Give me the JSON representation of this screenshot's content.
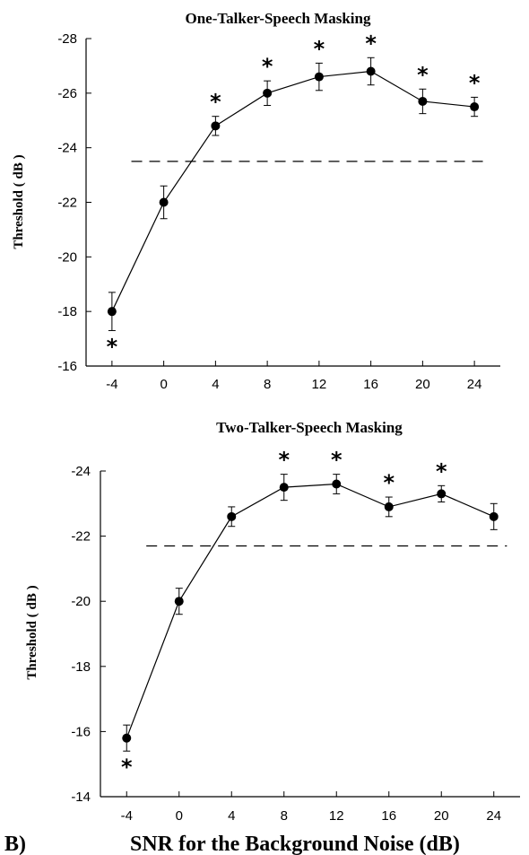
{
  "chart_data": [
    {
      "type": "line",
      "title": "One-Talker-Speech Masking",
      "ylabel": "Threshold ( dB )",
      "xlabel": "",
      "x": [
        -4,
        0,
        4,
        8,
        12,
        16,
        20,
        24
      ],
      "x_ticks": [
        "-4",
        "0",
        "4",
        "8",
        "12",
        "16",
        "20",
        "24"
      ],
      "y": [
        -18.0,
        -22.0,
        -24.8,
        -26.0,
        -26.6,
        -26.8,
        -25.7,
        -25.5
      ],
      "err": [
        0.7,
        0.6,
        0.35,
        0.45,
        0.5,
        0.5,
        0.45,
        0.35
      ],
      "y_ticks": [
        "-28",
        "-26",
        "-24",
        "-22",
        "-20",
        "-18",
        "-16"
      ],
      "ylim": [
        -16,
        -28
      ],
      "xlim": [
        -6,
        26
      ],
      "reference_line": -23.5,
      "significance": [
        true,
        false,
        true,
        true,
        true,
        true,
        true,
        true
      ],
      "star_symbol": "*"
    },
    {
      "type": "line",
      "title": "Two-Talker-Speech Masking",
      "ylabel": "Threshold ( dB )",
      "xlabel": "SNR for the Background Noise (dB)",
      "panel_label": "B)",
      "x": [
        -4,
        0,
        4,
        8,
        12,
        16,
        20,
        24
      ],
      "x_ticks": [
        "-4",
        "0",
        "4",
        "8",
        "12",
        "16",
        "20",
        "24"
      ],
      "y": [
        -15.8,
        -20.0,
        -22.6,
        -23.5,
        -23.6,
        -22.9,
        -23.3,
        -22.6
      ],
      "err": [
        0.4,
        0.4,
        0.3,
        0.4,
        0.3,
        0.3,
        0.25,
        0.4
      ],
      "y_ticks": [
        "-24",
        "-22",
        "-20",
        "-18",
        "-16",
        "-14"
      ],
      "ylim": [
        -14,
        -24
      ],
      "xlim": [
        -6,
        26
      ],
      "reference_line": -21.7,
      "significance": [
        true,
        false,
        false,
        true,
        true,
        true,
        true,
        false
      ],
      "star_symbol": "*"
    }
  ]
}
